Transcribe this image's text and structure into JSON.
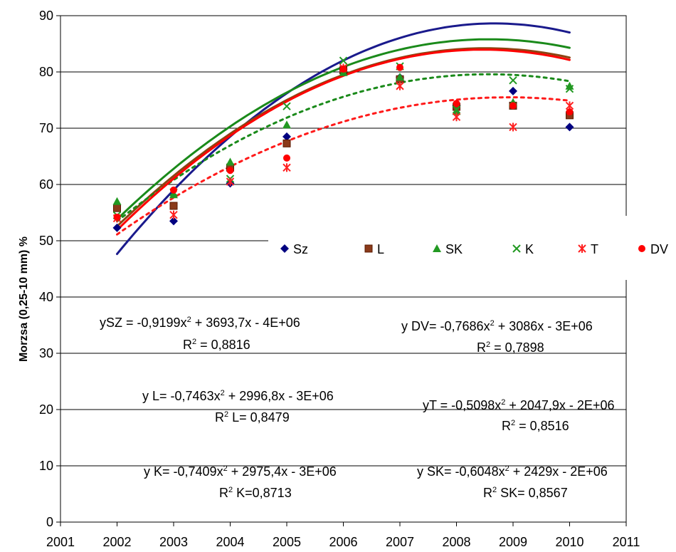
{
  "chart_data": {
    "type": "scatter",
    "title": "",
    "xlabel": "",
    "ylabel": "Morzsa (0,25-10 mm) %",
    "xlim": [
      2001,
      2011
    ],
    "ylim": [
      0,
      90
    ],
    "x_ticks": [
      "2001",
      "2002",
      "2003",
      "2004",
      "2005",
      "2006",
      "2007",
      "2008",
      "2009",
      "2010",
      "2011"
    ],
    "y_ticks": [
      "0",
      "10",
      "20",
      "30",
      "40",
      "50",
      "60",
      "70",
      "80",
      "90"
    ],
    "grid": "horizontal",
    "legend_position": "middle-right",
    "x": [
      2002,
      2003,
      2004,
      2005,
      2006,
      2007,
      2008,
      2009,
      2010
    ],
    "series": [
      {
        "name": "Sz",
        "marker": "diamond",
        "color": "#000080",
        "values": [
          52.3,
          53.5,
          60.2,
          68.5,
          80.5,
          79.0,
          74.0,
          76.6,
          70.2
        ],
        "trend_style": "solid",
        "trend_color": "#1a1a8c"
      },
      {
        "name": "L",
        "marker": "square",
        "color": "#8b3a1a",
        "values": [
          55.8,
          56.2,
          63.0,
          67.3,
          80.3,
          78.7,
          73.8,
          74.0,
          72.3
        ],
        "trend_style": "solid",
        "trend_color": "#8b4513"
      },
      {
        "name": "SK",
        "marker": "triangle",
        "color": "#229922",
        "values": [
          57.0,
          58.2,
          64.0,
          70.6,
          79.9,
          79.1,
          73.0,
          74.6,
          77.5
        ],
        "trend_style": "dotted",
        "trend_color": "#1a8a1a"
      },
      {
        "name": "K",
        "marker": "x",
        "color": "#229922",
        "values": [
          54.5,
          58.6,
          61.0,
          73.9,
          82.0,
          81.0,
          73.3,
          78.5,
          77.0
        ],
        "trend_style": "solid",
        "trend_color": "#1a8a1a"
      },
      {
        "name": "T",
        "marker": "asterisk",
        "color": "#ff2020",
        "values": [
          54.0,
          54.6,
          60.5,
          63.0,
          80.7,
          77.5,
          72.0,
          70.2,
          74.0
        ],
        "trend_style": "dotted",
        "trend_color": "#ff1a1a"
      },
      {
        "name": "DV",
        "marker": "circle",
        "color": "#ff0000",
        "values": [
          54.2,
          59.0,
          62.5,
          64.7,
          80.5,
          80.8,
          74.4,
          74.0,
          72.9
        ],
        "trend_style": "solid",
        "trend_color": "#ff0000"
      }
    ],
    "trendlines": [
      {
        "series": "Sz",
        "a": -0.9199,
        "b_rel": 12.28,
        "c": 47.64
      },
      {
        "series": "L",
        "a": -0.7463,
        "b_rel": 9.72,
        "c": 52.56
      },
      {
        "series": "SK",
        "a": -0.6048,
        "b_rel": 7.95,
        "c": 53.46
      },
      {
        "series": "K",
        "a": -0.7409,
        "b_rel": 9.74,
        "c": 53.79
      },
      {
        "series": "T",
        "a": -0.5098,
        "b_rel": 7.05,
        "c": 51.12
      },
      {
        "series": "DV",
        "a": -0.7686,
        "b_rel": 9.93,
        "c": 51.89
      }
    ],
    "annotations": [
      {
        "line1": [
          "ySZ = -0,9199x",
          "2",
          " + 3693,7x - 4E+06"
        ],
        "line2": [
          "R",
          "2",
          " = 0,8816"
        ]
      },
      {
        "line1": [
          "y DV= -0,7686x",
          "2",
          " + 3086x - 3E+06"
        ],
        "line2": [
          "R",
          "2",
          " = 0,7898"
        ]
      },
      {
        "line1": [
          "y L= -0,7463x",
          "2",
          " + 2996,8x - 3E+06"
        ],
        "line2": [
          "R",
          "2",
          " L= 0,8479"
        ]
      },
      {
        "line1": [
          "yT = -0,5098x",
          "2",
          " + 2047,9x - 2E+06"
        ],
        "line2": [
          "R",
          "2",
          " = 0,8516"
        ]
      },
      {
        "line1": [
          "y K= -0,7409x",
          "2",
          " + 2975,4x - 3E+06"
        ],
        "line2": [
          "R",
          "2",
          " K=0,8713"
        ]
      },
      {
        "line1": [
          "y SK= -0,6048x",
          "2",
          " + 2429x - 2E+06"
        ],
        "line2": [
          "R",
          "2",
          " SK= 0,8567"
        ]
      }
    ]
  }
}
